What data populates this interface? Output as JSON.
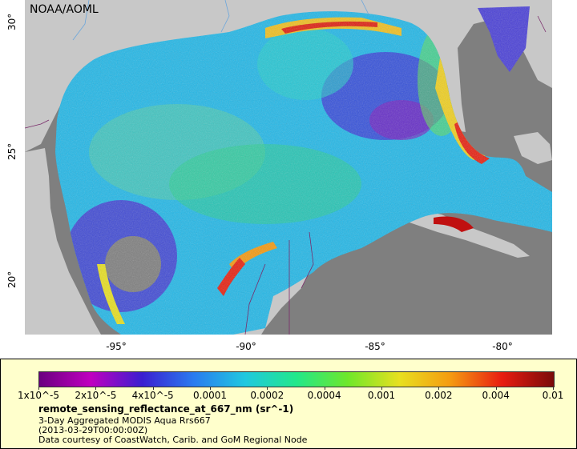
{
  "map": {
    "source_label": "NOAA/AOML",
    "lon_ticks": [
      "-95°",
      "-90°",
      "-85°",
      "-80°"
    ],
    "lat_ticks": [
      "30°",
      "25°",
      "20°"
    ],
    "land_color": "#c8c8c8",
    "nodata_color": "#7f7f7f"
  },
  "legend": {
    "colorbar_labels": [
      "1x10^-5",
      "2x10^-5",
      "4x10^-5",
      "0.0001",
      "0.0002",
      "0.0004",
      "0.001",
      "0.002",
      "0.004",
      "0.01"
    ],
    "title": "remote_sensing_reflectance_at_667_nm (sr^-1)",
    "line1": "3-Day Aggregated MODIS Aqua Rrs667",
    "line2": "(2013-03-29T00:00:00Z)",
    "line3": "Data courtesy of CoastWatch, Carib. and GoM Regional Node"
  }
}
